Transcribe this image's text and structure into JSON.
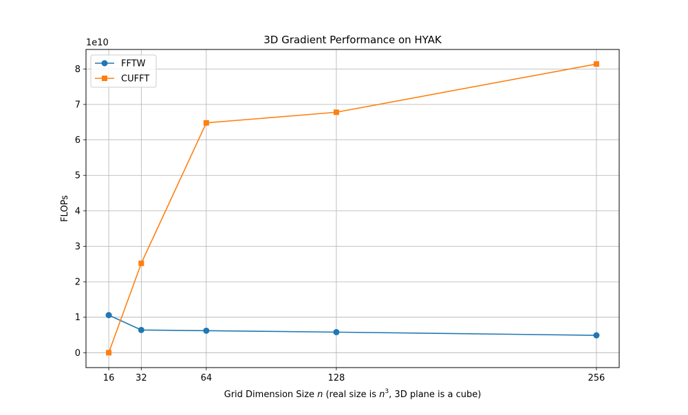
{
  "chart_data": {
    "type": "line",
    "title": "3D Gradient Performance on HYAK",
    "xlabel_parts": {
      "prefix": "Grid Dimension Size ",
      "var": "n",
      "mid": " (real size is ",
      "var2": "n",
      "sup": "3",
      "suffix": ", 3D plane is a cube)"
    },
    "ylabel": "FLOPs",
    "y_offset_label": "1e10",
    "x": [
      16,
      32,
      64,
      128,
      256
    ],
    "x_ticks": [
      16,
      32,
      64,
      128,
      256
    ],
    "xlim": [
      4.8,
      267.2
    ],
    "y_ticks": [
      0,
      1,
      2,
      3,
      4,
      5,
      6,
      7,
      8
    ],
    "ylim": [
      -0.42,
      8.55
    ],
    "y_scale_note": "values in units of 1e10",
    "grid": true,
    "legend_position": "upper-left",
    "series": [
      {
        "name": "FFTW",
        "color": "#1f77b4",
        "marker": "circle",
        "values": [
          1.06,
          0.64,
          0.62,
          0.58,
          0.49
        ]
      },
      {
        "name": "CUFFT",
        "color": "#ff7f0e",
        "marker": "square",
        "values": [
          0.0,
          2.52,
          6.48,
          6.78,
          8.14
        ]
      }
    ]
  }
}
